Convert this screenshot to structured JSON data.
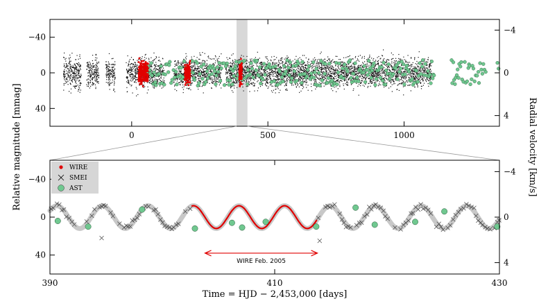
{
  "chart_data": [
    {
      "type": "scatter",
      "panel": "top",
      "title": "",
      "xlabel": "",
      "ylabel_left": "Relative magnitude [mmag]",
      "ylabel_right": "Radial velocity [km/s]",
      "xlim": [
        -300,
        1350
      ],
      "ylim_left": [
        -60,
        60
      ],
      "ylim_right": [
        -5,
        5
      ],
      "x_ticks": [
        0,
        500,
        1000
      ],
      "y_ticks_left": [
        -40,
        0,
        40
      ],
      "y_ticks_left_labels": [
        "−40",
        "0",
        "40"
      ],
      "y_ticks_right": [
        -4,
        0,
        4
      ],
      "y_ticks_right_labels": [
        "−4",
        "0",
        "4"
      ],
      "highlight_band": [
        385,
        425
      ],
      "series": [
        {
          "name": "SMEI",
          "marker": "x",
          "color": "#000000",
          "segments": [
            [
              -250,
              -185
            ],
            [
              -165,
              -120
            ],
            [
              -95,
              -60
            ],
            [
              -20,
              120
            ],
            [
              155,
              330
            ],
            [
              345,
              1100
            ]
          ],
          "spread_mmag": 28
        },
        {
          "name": "WIRE",
          "marker": "dot",
          "color": "#e00000",
          "segments": [
            [
              25,
              60
            ],
            [
              195,
              215
            ],
            [
              395,
              405
            ]
          ],
          "spread_mmag": 20
        },
        {
          "name": "AST",
          "marker": "circle",
          "color": "#70c890",
          "x_range": [
            40,
            1350
          ],
          "amplitude_kms": 1.2
        }
      ]
    },
    {
      "type": "line",
      "panel": "bottom",
      "xlabel": "Time = HJD − 2,453,000 [days]",
      "ylabel_left": "Relative magnitude [mmag]",
      "ylabel_right": "Radial velocity [km/s]",
      "xlim": [
        390,
        430
      ],
      "ylim_left": [
        -60,
        60
      ],
      "ylim_right": [
        -5,
        5
      ],
      "x_ticks": [
        390,
        410,
        430
      ],
      "y_ticks_left": [
        -40,
        0,
        40
      ],
      "y_ticks_left_labels": [
        "−40",
        "0",
        "40"
      ],
      "y_ticks_right": [
        -4,
        0,
        4
      ],
      "y_ticks_right_labels": [
        "−4",
        "0",
        "4"
      ],
      "period_days": 4.05,
      "amplitude_mmag": 12,
      "wire_range": [
        402.6,
        413.8
      ],
      "ast_points": [
        {
          "x": 390.7,
          "y": 4
        },
        {
          "x": 393.4,
          "y": 10
        },
        {
          "x": 398.2,
          "y": -8
        },
        {
          "x": 402.9,
          "y": 12
        },
        {
          "x": 406.2,
          "y": 6
        },
        {
          "x": 407.1,
          "y": 11
        },
        {
          "x": 409.2,
          "y": 5
        },
        {
          "x": 413.7,
          "y": 10
        },
        {
          "x": 417.2,
          "y": -10
        },
        {
          "x": 418.9,
          "y": 8
        },
        {
          "x": 422.5,
          "y": 5
        },
        {
          "x": 425.1,
          "y": -6
        },
        {
          "x": 429.8,
          "y": 10
        }
      ],
      "smei_outliers": [
        {
          "x": 394.6,
          "y": 22
        },
        {
          "x": 414.0,
          "y": 25
        }
      ],
      "annotation": {
        "text": "WIRE Feb. 2005",
        "x_from": 403.8,
        "x_to": 413.8,
        "y": 38
      },
      "legend": [
        {
          "label": "WIRE",
          "marker": "dot",
          "color": "#e00000"
        },
        {
          "label": "SMEI",
          "marker": "x",
          "color": "#000000"
        },
        {
          "label": "AST",
          "marker": "circle",
          "color": "#70c890"
        }
      ]
    }
  ]
}
